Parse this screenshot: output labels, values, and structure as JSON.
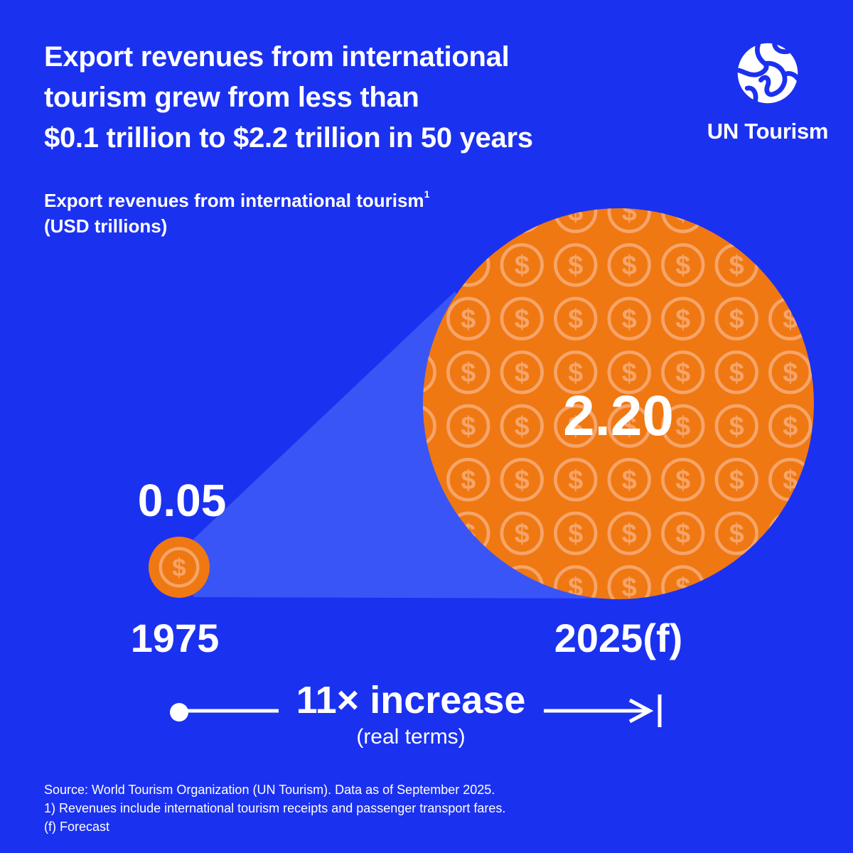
{
  "headline": {
    "line1": "Export revenues from international",
    "line2": "tourism grew from less than",
    "line3": "$0.1 trillion to $2.2 trillion in 50 years"
  },
  "brand": {
    "name": "UN Tourism",
    "mark_icon": "un-tourism-globe-icon"
  },
  "colors": {
    "background": "#1b31f0",
    "bubble": "#f07812",
    "bubble_icon": "#f6a56a",
    "cone": "#3a55f5",
    "text": "#ffffff"
  },
  "chart_data": {
    "type": "bubble",
    "title": "Export revenues from international tourism",
    "title_sup": "1",
    "unit": "(USD trillions)",
    "categories": [
      "1975",
      "2025(f)"
    ],
    "values": [
      0.05,
      2.2
    ],
    "value_labels": [
      "0.05",
      "2.20"
    ],
    "bubble_icon": "dollar-coin-icon",
    "comparison": {
      "label": "11× increase",
      "sublabel": "(real terms)"
    }
  },
  "footnotes": {
    "source": "Source: World Tourism Organization (UN Tourism). Data as of September 2025.",
    "note1": "1) Revenues include international tourism receipts and passenger transport fares.",
    "forecast": "(f) Forecast"
  }
}
